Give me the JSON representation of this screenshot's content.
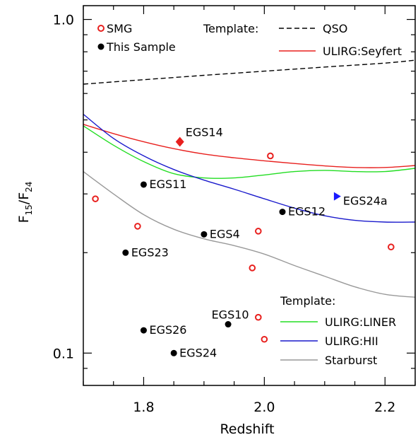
{
  "chart_data": {
    "type": "scatter",
    "title": "",
    "xlabel": "Redshift",
    "ylabel": {
      "base": "F",
      "sub1": "15",
      "slash": "/",
      "sub2": "24"
    },
    "xlim": [
      1.7,
      2.25
    ],
    "ylim": [
      0.08,
      1.1
    ],
    "yscale": "log",
    "grid": false,
    "x_ticks": [
      {
        "value": 1.8,
        "label": "1.8"
      },
      {
        "value": 2.0,
        "label": "2.0"
      },
      {
        "value": 2.2,
        "label": "2.2"
      }
    ],
    "y_ticks": [
      {
        "value": 0.1,
        "label": "0.1"
      },
      {
        "value": 1.0,
        "label": "1.0"
      }
    ],
    "legend_top": {
      "position": "top",
      "marker_entries": [
        {
          "label": "SMG",
          "marker": "open-circle",
          "color": "#e8201e"
        },
        {
          "label": "This Sample",
          "marker": "filled-circle",
          "color": "#000000"
        }
      ],
      "template_title": "Template:",
      "line_entries": [
        {
          "label": "QSO",
          "color": "#000000",
          "dash": "dashed"
        },
        {
          "label": "ULIRG:Seyfert",
          "color": "#e8201e",
          "dash": "solid"
        }
      ]
    },
    "legend_bottom": {
      "position": "bottom-right",
      "title": "Template:",
      "entries": [
        {
          "label": "ULIRG:LINER",
          "color": "#22dd22"
        },
        {
          "label": "ULIRG:HII",
          "color": "#1a1acc"
        },
        {
          "label": "Starburst",
          "color": "#999999"
        }
      ]
    },
    "series": [
      {
        "name": "This Sample",
        "marker": "filled-circle",
        "color": "#000000",
        "points": [
          {
            "label": "EGS11",
            "x": 1.8,
            "y": 0.32
          },
          {
            "label": "EGS12",
            "x": 2.03,
            "y": 0.265
          },
          {
            "label": "EGS4",
            "x": 1.9,
            "y": 0.227
          },
          {
            "label": "EGS23",
            "x": 1.77,
            "y": 0.2
          },
          {
            "label": "EGS10",
            "x": 1.94,
            "y": 0.122
          },
          {
            "label": "EGS26",
            "x": 1.8,
            "y": 0.117
          },
          {
            "label": "EGS24",
            "x": 1.85,
            "y": 0.1
          }
        ]
      },
      {
        "name": "SMG",
        "marker": "open-circle",
        "color": "#e8201e",
        "points": [
          {
            "x": 1.72,
            "y": 0.29
          },
          {
            "x": 1.79,
            "y": 0.24
          },
          {
            "x": 1.98,
            "y": 0.18
          },
          {
            "x": 1.99,
            "y": 0.232
          },
          {
            "x": 2.01,
            "y": 0.39
          },
          {
            "x": 1.99,
            "y": 0.128
          },
          {
            "x": 2.0,
            "y": 0.11
          },
          {
            "x": 2.21,
            "y": 0.208
          }
        ]
      },
      {
        "name": "EGS14",
        "marker": "filled-diamond",
        "color": "#e8201e",
        "points": [
          {
            "label": "EGS14",
            "x": 1.86,
            "y": 0.43
          }
        ]
      },
      {
        "name": "EGS24a",
        "marker": "filled-triangle-right",
        "color": "#1a1aff",
        "points": [
          {
            "label": "EGS24a",
            "x": 2.12,
            "y": 0.295
          }
        ]
      }
    ],
    "curves": [
      {
        "name": "QSO",
        "color": "#000000",
        "dash": "dashed",
        "x": [
          1.7,
          1.8,
          1.9,
          2.0,
          2.1,
          2.2,
          2.25
        ],
        "y": [
          0.64,
          0.66,
          0.68,
          0.7,
          0.72,
          0.74,
          0.755
        ]
      },
      {
        "name": "ULIRG:Seyfert",
        "color": "#e8201e",
        "dash": "solid",
        "x": [
          1.7,
          1.75,
          1.8,
          1.85,
          1.9,
          1.95,
          2.0,
          2.05,
          2.1,
          2.15,
          2.2,
          2.25
        ],
        "y": [
          0.485,
          0.455,
          0.43,
          0.41,
          0.395,
          0.385,
          0.377,
          0.37,
          0.364,
          0.36,
          0.36,
          0.365
        ]
      },
      {
        "name": "ULIRG:LINER",
        "color": "#22dd22",
        "dash": "solid",
        "x": [
          1.7,
          1.75,
          1.8,
          1.85,
          1.9,
          1.95,
          2.0,
          2.05,
          2.1,
          2.15,
          2.2,
          2.25
        ],
        "y": [
          0.48,
          0.42,
          0.375,
          0.345,
          0.335,
          0.335,
          0.342,
          0.35,
          0.353,
          0.35,
          0.35,
          0.358
        ]
      },
      {
        "name": "ULIRG:HII",
        "color": "#1a1acc",
        "dash": "solid",
        "x": [
          1.7,
          1.75,
          1.8,
          1.85,
          1.9,
          1.95,
          2.0,
          2.05,
          2.1,
          2.15,
          2.2,
          2.25
        ],
        "y": [
          0.52,
          0.44,
          0.39,
          0.355,
          0.33,
          0.31,
          0.29,
          0.272,
          0.258,
          0.25,
          0.247,
          0.247
        ]
      },
      {
        "name": "Starburst",
        "color": "#999999",
        "dash": "solid",
        "x": [
          1.7,
          1.75,
          1.8,
          1.85,
          1.9,
          1.95,
          2.0,
          2.05,
          2.1,
          2.15,
          2.2,
          2.25
        ],
        "y": [
          0.35,
          0.3,
          0.26,
          0.235,
          0.22,
          0.21,
          0.198,
          0.183,
          0.17,
          0.158,
          0.15,
          0.147
        ]
      }
    ]
  }
}
